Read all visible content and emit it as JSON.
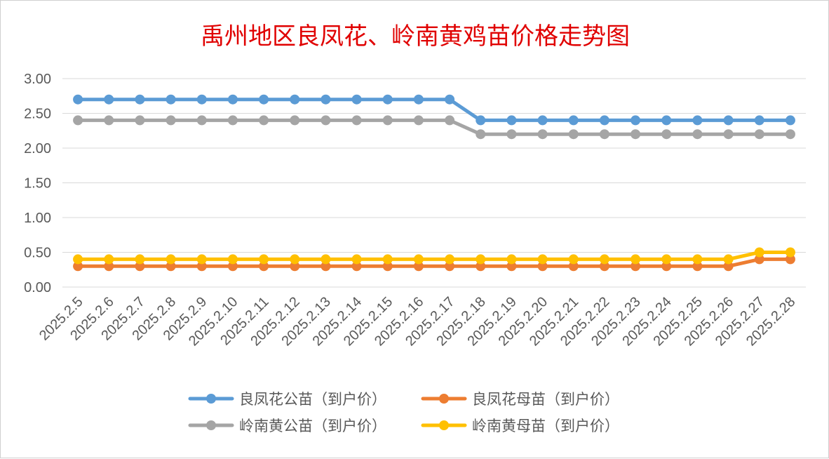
{
  "chart_data": {
    "type": "line",
    "title": "禹州地区良凤花、岭南黄鸡苗价格走势图",
    "xlabel": "",
    "ylabel": "",
    "ylim": [
      0,
      3
    ],
    "ytick_labels": [
      "0.00",
      "0.50",
      "1.00",
      "1.50",
      "2.00",
      "2.50",
      "3.00"
    ],
    "grid": true,
    "legend_position": "bottom",
    "categories": [
      "2025.2.5",
      "2025.2.6",
      "2025.2.7",
      "2025.2.8",
      "2025.2.9",
      "2025.2.10",
      "2025.2.11",
      "2025.2.12",
      "2025.2.13",
      "2025.2.14",
      "2025.2.15",
      "2025.2.16",
      "2025.2.17",
      "2025.2.18",
      "2025.2.19",
      "2025.2.20",
      "2025.2.21",
      "2025.2.22",
      "2025.2.23",
      "2025.2.24",
      "2025.2.25",
      "2025.2.26",
      "2025.2.27",
      "2025.2.28"
    ],
    "series": [
      {
        "name": "良凤花公苗（到户价）",
        "color": "#5b9bd5",
        "values": [
          2.7,
          2.7,
          2.7,
          2.7,
          2.7,
          2.7,
          2.7,
          2.7,
          2.7,
          2.7,
          2.7,
          2.7,
          2.7,
          2.4,
          2.4,
          2.4,
          2.4,
          2.4,
          2.4,
          2.4,
          2.4,
          2.4,
          2.4,
          2.4
        ]
      },
      {
        "name": "良凤花母苗（到户价）",
        "color": "#ed7d31",
        "values": [
          0.3,
          0.3,
          0.3,
          0.3,
          0.3,
          0.3,
          0.3,
          0.3,
          0.3,
          0.3,
          0.3,
          0.3,
          0.3,
          0.3,
          0.3,
          0.3,
          0.3,
          0.3,
          0.3,
          0.3,
          0.3,
          0.3,
          0.4,
          0.4
        ]
      },
      {
        "name": "岭南黄公苗（到户价）",
        "color": "#a5a5a5",
        "values": [
          2.4,
          2.4,
          2.4,
          2.4,
          2.4,
          2.4,
          2.4,
          2.4,
          2.4,
          2.4,
          2.4,
          2.4,
          2.4,
          2.2,
          2.2,
          2.2,
          2.2,
          2.2,
          2.2,
          2.2,
          2.2,
          2.2,
          2.2,
          2.2
        ]
      },
      {
        "name": "岭南黄母苗（到户价）",
        "color": "#ffc000",
        "values": [
          0.4,
          0.4,
          0.4,
          0.4,
          0.4,
          0.4,
          0.4,
          0.4,
          0.4,
          0.4,
          0.4,
          0.4,
          0.4,
          0.4,
          0.4,
          0.4,
          0.4,
          0.4,
          0.4,
          0.4,
          0.4,
          0.4,
          0.5,
          0.5
        ]
      }
    ]
  },
  "colors": {
    "title": "#e00000",
    "grid": "#d9d9d9",
    "axis_text": "#595959"
  }
}
